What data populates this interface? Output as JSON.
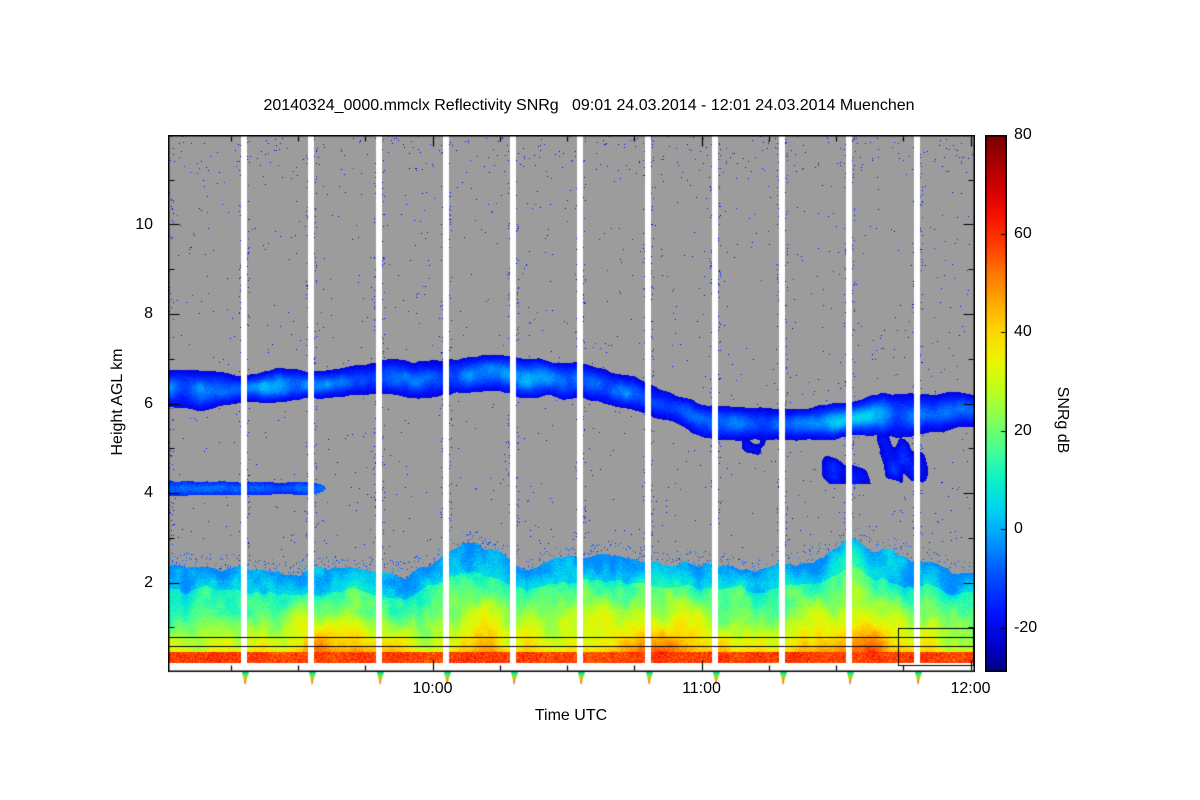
{
  "page": {
    "background_color": "#ffffff"
  },
  "chart_data": {
    "type": "heatmap",
    "title": "20140324_0000.mmclx Reflectivity SNRg   09:01 24.03.2014 - 12:01 24.03.2014 Muenchen",
    "xlabel": "Time UTC",
    "ylabel": "Height AGL km",
    "colorbar_label": "SNRg dB",
    "x_axis": {
      "start_hour": 9.0167,
      "end_hour": 12.0167,
      "tick_hours": [
        10,
        11,
        12
      ],
      "tick_labels": [
        "10:00",
        "11:00",
        "12:00"
      ],
      "minor_tick_interval_hours": 0.25
    },
    "y_axis": {
      "min_km": 0,
      "max_km": 12,
      "tick_values": [
        2,
        4,
        6,
        8,
        10
      ],
      "minor_tick_interval_km": 1
    },
    "colorbar": {
      "min_db": -29,
      "max_db": 80,
      "tick_values": [
        80,
        60,
        40,
        20,
        0,
        -20
      ],
      "stops": [
        [
          -29,
          "#000082"
        ],
        [
          -24,
          "#0000c8"
        ],
        [
          -17,
          "#0014ff"
        ],
        [
          -9,
          "#0055ff"
        ],
        [
          -2,
          "#009dff"
        ],
        [
          4,
          "#00d4f0"
        ],
        [
          10,
          "#0cf2c8"
        ],
        [
          16,
          "#45ff96"
        ],
        [
          22,
          "#82ff5a"
        ],
        [
          28,
          "#bcff1e"
        ],
        [
          34,
          "#ecf600"
        ],
        [
          40,
          "#ffd800"
        ],
        [
          46,
          "#ffaa00"
        ],
        [
          52,
          "#ff7600"
        ],
        [
          58,
          "#ff3c00"
        ],
        [
          64,
          "#f51000"
        ],
        [
          70,
          "#cd0000"
        ],
        [
          75,
          "#a30000"
        ],
        [
          80,
          "#7b0000"
        ]
      ]
    },
    "no_signal_color": "#9c9c9c",
    "scan_gap_hours": [
      9.3,
      9.55,
      9.8,
      10.05,
      10.3,
      10.55,
      10.8,
      11.05,
      11.3,
      11.55,
      11.8
    ],
    "artifact_lines_km": [
      0.58,
      0.78
    ],
    "artifact_box": {
      "time_hours": [
        11.73,
        12.01
      ],
      "height_km": [
        0.16,
        0.98
      ]
    },
    "features": [
      {
        "id": "surface-strip",
        "description": "thin dark-red near-surface echo strip running along the bottom of the plot",
        "height_km": [
          0.2,
          0.45
        ],
        "snr_db": 58
      },
      {
        "id": "boundary-layer",
        "description": "continuous boundary-layer echo from the surface up to about 2-3 km, green to red (roughly 15-65 dB), strongest around 09:35-09:50, 10:40-11:10 and a tall intense plume 11:30-11:45",
        "snr_surface_db": 52,
        "snr_top_db": 5,
        "top_keyframes": {
          "hours": [
            9.02,
            9.3,
            9.6,
            9.9,
            10.14,
            10.35,
            10.6,
            10.85,
            11.1,
            11.35,
            11.55,
            11.75,
            12.02
          ],
          "top_km": [
            2.35,
            2.25,
            2.3,
            2.2,
            2.9,
            2.45,
            2.6,
            2.4,
            2.35,
            2.3,
            2.95,
            2.5,
            2.2
          ]
        },
        "intensity_keyframes": {
          "hours": [
            9.02,
            9.3,
            9.45,
            9.62,
            9.8,
            9.95,
            10.18,
            10.45,
            10.62,
            10.78,
            10.95,
            11.1,
            11.3,
            11.5,
            11.62,
            11.78,
            12.02
          ],
          "intensity": [
            0.5,
            0.55,
            0.7,
            0.9,
            0.75,
            0.5,
            0.75,
            0.55,
            0.7,
            0.95,
            0.85,
            0.75,
            0.5,
            0.9,
            1.05,
            0.6,
            0.45
          ]
        }
      },
      {
        "id": "cloud-layer",
        "description": "elevated ice-cloud layer, blue (-27 to about 0 dB), near 5.9-6.8 km before 10:45, descending to 5.3-6.2 km after 11:00",
        "snr_min_db": -26,
        "snr_max_db": 2,
        "center_keyframes": {
          "hours": [
            9.02,
            9.4,
            9.8,
            10.15,
            10.45,
            10.75,
            11.05,
            11.35,
            11.65,
            12.02
          ],
          "center_km": [
            6.3,
            6.35,
            6.55,
            6.65,
            6.55,
            6.2,
            5.55,
            5.5,
            5.75,
            5.85
          ]
        },
        "halfwidth_keyframes": {
          "hours": [
            9.02,
            9.6,
            9.9,
            10.3,
            10.7,
            11.1,
            11.4,
            11.7,
            12.02
          ],
          "halfwidth_km": [
            0.45,
            0.35,
            0.45,
            0.5,
            0.45,
            0.4,
            0.35,
            0.6,
            0.4
          ]
        }
      },
      {
        "id": "thin-layer-4km",
        "description": "thin blue layer near 4.1 km from 09:01 until about 09:38",
        "time_hours": [
          9.02,
          9.64
        ],
        "center_km": 4.1,
        "halfwidth_km": 0.18,
        "snr_db": -18
      },
      {
        "id": "descending-patches",
        "description": "patchy blue fall-streaks between 4.2 and 5.4 km from about 11:10 to 11:55",
        "time_hours": [
          11.15,
          11.95
        ],
        "height_km": [
          4.2,
          5.4
        ],
        "snr_range_db": [
          -24,
          -8
        ]
      },
      {
        "id": "speckle-noise",
        "description": "isolated blue noise pixels scattered through the gray no-signal background, denser beside the white scan gaps and near the plot top",
        "snr_range_db": [
          -28,
          -14
        ]
      }
    ]
  }
}
